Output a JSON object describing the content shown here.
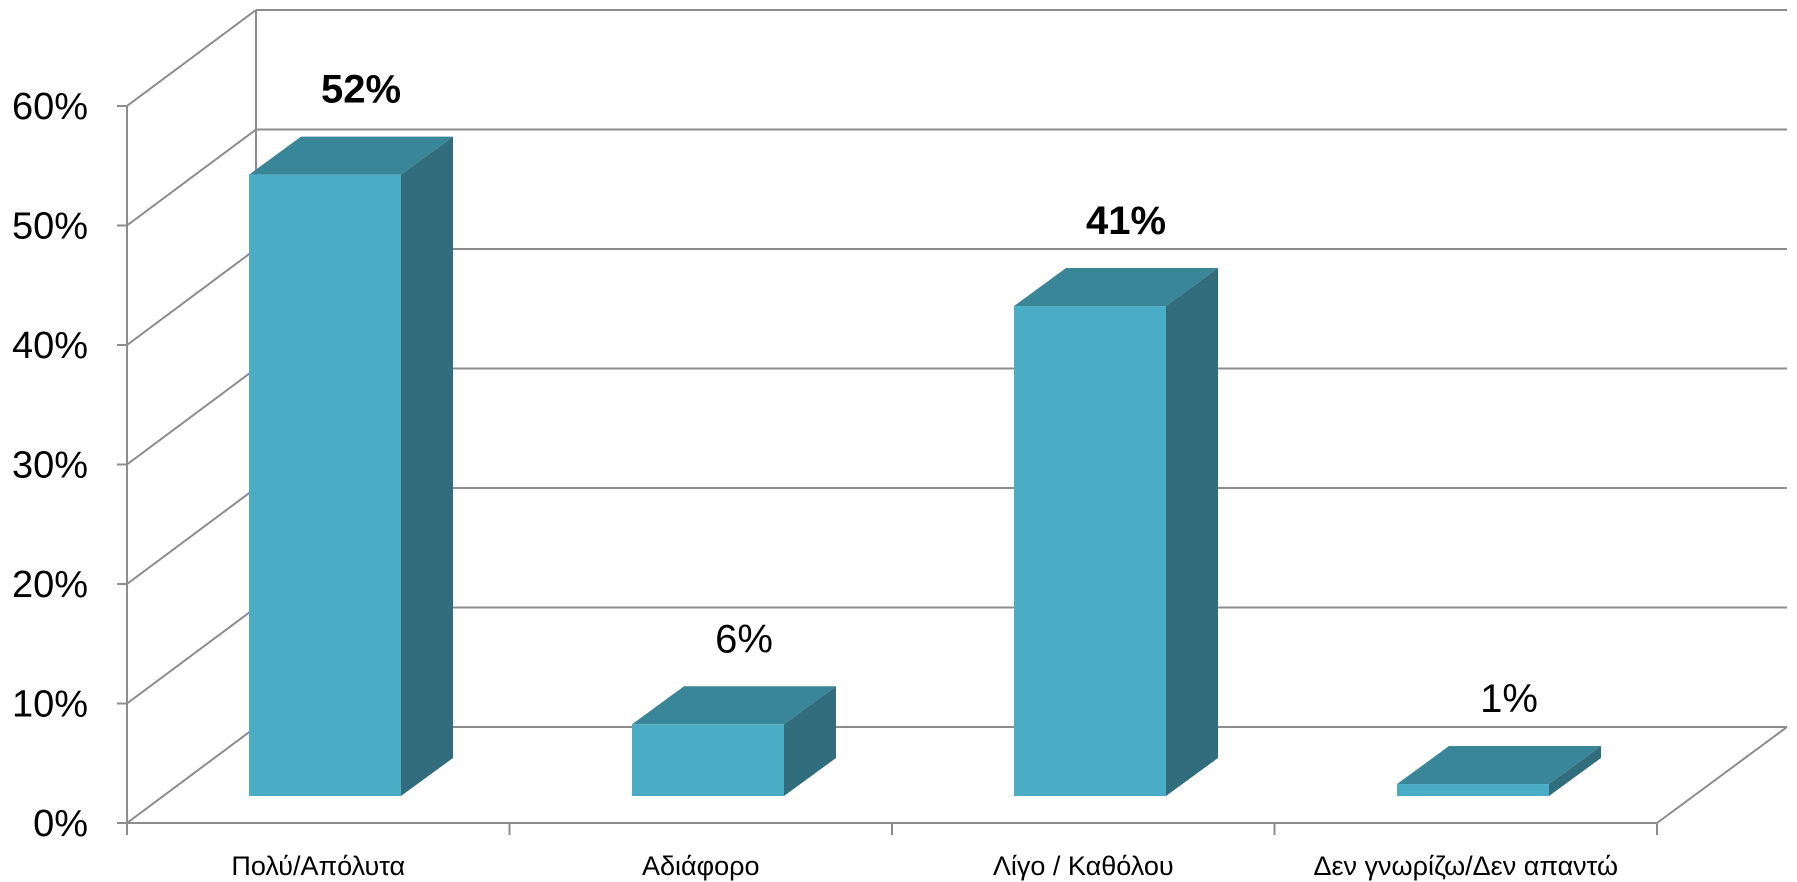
{
  "chart_data": {
    "type": "bar",
    "categories": [
      "Πολύ/Απόλυτα",
      "Αδιάφορο",
      "Λίγο / Καθόλου",
      "Δεν γνωρίζω/Δεν απαντώ"
    ],
    "values": [
      52,
      6,
      41,
      1
    ],
    "data_labels": [
      "52%",
      "6%",
      "41%",
      "1%"
    ],
    "data_label_bold": [
      true,
      false,
      true,
      false
    ],
    "ylim": [
      0,
      60
    ],
    "yticks": [
      "0%",
      "10%",
      "20%",
      "30%",
      "40%",
      "50%",
      "60%"
    ],
    "grid": true,
    "style": "3d-column",
    "colors": {
      "front": "#4bacc6",
      "top": "#3a8699",
      "side": "#316d7c",
      "grid": "#8c8c8c"
    }
  }
}
